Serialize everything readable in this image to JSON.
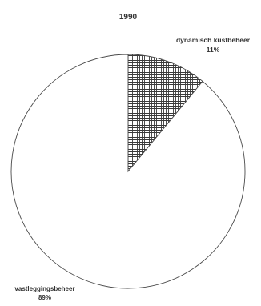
{
  "chart_data": {
    "type": "pie",
    "title": "1990",
    "slices": [
      {
        "label": "dynamisch kustbeheer",
        "value": 11,
        "value_label": "11%",
        "pattern": "crosshatch"
      },
      {
        "label": "vastleggingsbeheer",
        "value": 89,
        "value_label": "89%",
        "pattern": "none"
      }
    ],
    "start_angle_deg": 0,
    "direction": "clockwise",
    "colors": {
      "outline": "#4a4a4a",
      "hatch": "#3a3a3a",
      "fill_plain": "#ffffff",
      "text": "#333333"
    }
  }
}
